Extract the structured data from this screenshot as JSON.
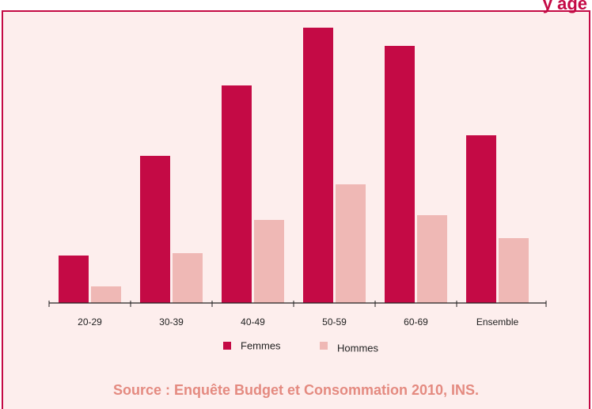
{
  "chart_data": {
    "type": "bar",
    "title": "y âge",
    "categories": [
      "20-29",
      "30-39",
      "40-49",
      "50-59",
      "60-69",
      "Ensemble"
    ],
    "series": [
      {
        "name": "Femmes",
        "color": "#c40a45",
        "values": [
          60,
          186,
          275,
          348,
          325,
          212
        ]
      },
      {
        "name": "Hommes",
        "color": "#efb8b5",
        "values": [
          21,
          63,
          105,
          150,
          111,
          82
        ]
      }
    ],
    "ylim": [
      0,
      358
    ],
    "source": "Source : Enquête Budget et Consommation 2010, INS."
  }
}
